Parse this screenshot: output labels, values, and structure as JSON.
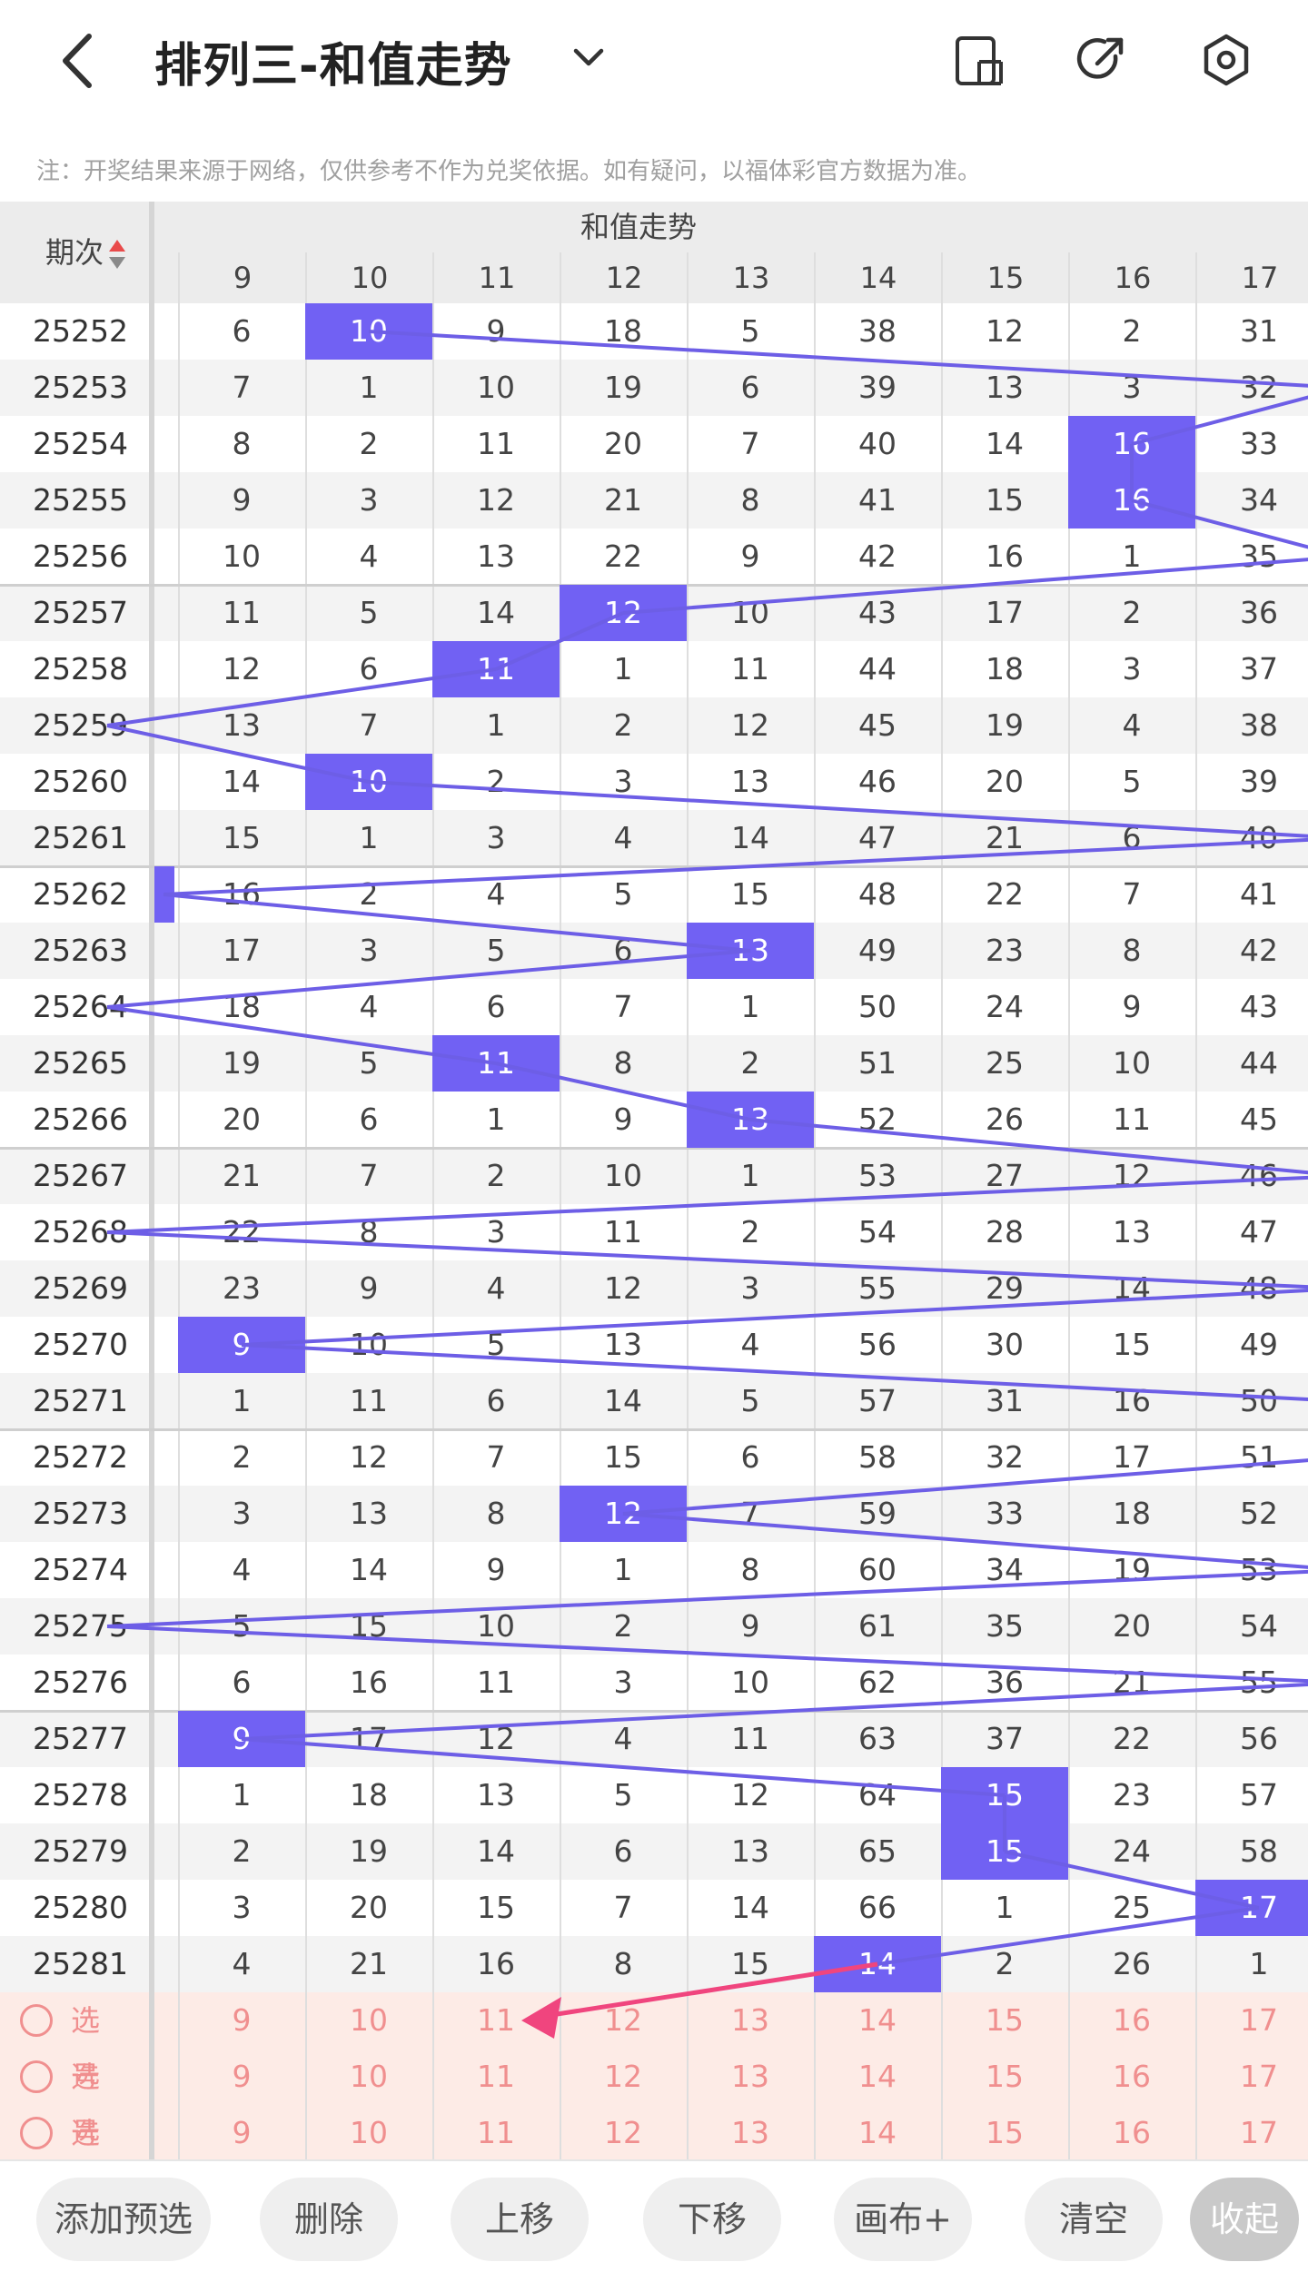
{
  "header": {
    "title": "排列三-和值走势",
    "back_icon": "chevron-left-icon",
    "dropdown_icon": "chevron-down-icon",
    "actions": [
      {
        "name": "layout-toggle-icon"
      },
      {
        "name": "share-arrow-icon"
      },
      {
        "name": "settings-icon"
      }
    ]
  },
  "notice": "注：开奖结果来源于网络，仅供参考不作为兑奖依据。如有疑问，以福体彩官方数据为准。",
  "table": {
    "issue_header": "期次",
    "group_header": "和值走势",
    "columns": [
      "9",
      "10",
      "11",
      "12",
      "13",
      "14",
      "15",
      "16",
      "17"
    ],
    "rows": [
      {
        "issue": "25252",
        "values": [
          "6",
          "10",
          "9",
          "18",
          "5",
          "38",
          "12",
          "2",
          "31"
        ],
        "hit": 1
      },
      {
        "issue": "25253",
        "values": [
          "7",
          "1",
          "10",
          "19",
          "6",
          "39",
          "13",
          "3",
          "32"
        ],
        "hit": null
      },
      {
        "issue": "25254",
        "values": [
          "8",
          "2",
          "11",
          "20",
          "7",
          "40",
          "14",
          "16",
          "33"
        ],
        "hit": 7
      },
      {
        "issue": "25255",
        "values": [
          "9",
          "3",
          "12",
          "21",
          "8",
          "41",
          "15",
          "16",
          "34"
        ],
        "hit": 7
      },
      {
        "issue": "25256",
        "values": [
          "10",
          "4",
          "13",
          "22",
          "9",
          "42",
          "16",
          "1",
          "35"
        ],
        "hit": null
      },
      {
        "issue": "25257",
        "values": [
          "11",
          "5",
          "14",
          "12",
          "10",
          "43",
          "17",
          "2",
          "36"
        ],
        "hit": 3
      },
      {
        "issue": "25258",
        "values": [
          "12",
          "6",
          "11",
          "1",
          "11",
          "44",
          "18",
          "3",
          "37"
        ],
        "hit": 2
      },
      {
        "issue": "25259",
        "values": [
          "13",
          "7",
          "1",
          "2",
          "12",
          "45",
          "19",
          "4",
          "38"
        ],
        "hit": null
      },
      {
        "issue": "25260",
        "values": [
          "14",
          "10",
          "2",
          "3",
          "13",
          "46",
          "20",
          "5",
          "39"
        ],
        "hit": 1
      },
      {
        "issue": "25261",
        "values": [
          "15",
          "1",
          "3",
          "4",
          "14",
          "47",
          "21",
          "6",
          "40"
        ],
        "hit": null
      },
      {
        "issue": "25262",
        "values": [
          "16",
          "2",
          "4",
          "5",
          "15",
          "48",
          "22",
          "7",
          "41"
        ],
        "hit": null
      },
      {
        "issue": "25263",
        "values": [
          "17",
          "3",
          "5",
          "6",
          "13",
          "49",
          "23",
          "8",
          "42"
        ],
        "hit": 4
      },
      {
        "issue": "25264",
        "values": [
          "18",
          "4",
          "6",
          "7",
          "1",
          "50",
          "24",
          "9",
          "43"
        ],
        "hit": null
      },
      {
        "issue": "25265",
        "values": [
          "19",
          "5",
          "11",
          "8",
          "2",
          "51",
          "25",
          "10",
          "44"
        ],
        "hit": 2
      },
      {
        "issue": "25266",
        "values": [
          "20",
          "6",
          "1",
          "9",
          "13",
          "52",
          "26",
          "11",
          "45"
        ],
        "hit": 4
      },
      {
        "issue": "25267",
        "values": [
          "21",
          "7",
          "2",
          "10",
          "1",
          "53",
          "27",
          "12",
          "46"
        ],
        "hit": null
      },
      {
        "issue": "25268",
        "values": [
          "22",
          "8",
          "3",
          "11",
          "2",
          "54",
          "28",
          "13",
          "47"
        ],
        "hit": null
      },
      {
        "issue": "25269",
        "values": [
          "23",
          "9",
          "4",
          "12",
          "3",
          "55",
          "29",
          "14",
          "48"
        ],
        "hit": null
      },
      {
        "issue": "25270",
        "values": [
          "9",
          "10",
          "5",
          "13",
          "4",
          "56",
          "30",
          "15",
          "49"
        ],
        "hit": 0
      },
      {
        "issue": "25271",
        "values": [
          "1",
          "11",
          "6",
          "14",
          "5",
          "57",
          "31",
          "16",
          "50"
        ],
        "hit": null
      },
      {
        "issue": "25272",
        "values": [
          "2",
          "12",
          "7",
          "15",
          "6",
          "58",
          "32",
          "17",
          "51"
        ],
        "hit": null
      },
      {
        "issue": "25273",
        "values": [
          "3",
          "13",
          "8",
          "12",
          "7",
          "59",
          "33",
          "18",
          "52"
        ],
        "hit": 3
      },
      {
        "issue": "25274",
        "values": [
          "4",
          "14",
          "9",
          "1",
          "8",
          "60",
          "34",
          "19",
          "53"
        ],
        "hit": null
      },
      {
        "issue": "25275",
        "values": [
          "5",
          "15",
          "10",
          "2",
          "9",
          "61",
          "35",
          "20",
          "54"
        ],
        "hit": null
      },
      {
        "issue": "25276",
        "values": [
          "6",
          "16",
          "11",
          "3",
          "10",
          "62",
          "36",
          "21",
          "55"
        ],
        "hit": null
      },
      {
        "issue": "25277",
        "values": [
          "9",
          "17",
          "12",
          "4",
          "11",
          "63",
          "37",
          "22",
          "56"
        ],
        "hit": 0
      },
      {
        "issue": "25278",
        "values": [
          "1",
          "18",
          "13",
          "5",
          "12",
          "64",
          "15",
          "23",
          "57"
        ],
        "hit": 6
      },
      {
        "issue": "25279",
        "values": [
          "2",
          "19",
          "14",
          "6",
          "13",
          "65",
          "15",
          "24",
          "58"
        ],
        "hit": 6
      },
      {
        "issue": "25280",
        "values": [
          "3",
          "20",
          "15",
          "7",
          "14",
          "66",
          "1",
          "25",
          "17"
        ],
        "hit": 8
      },
      {
        "issue": "25281",
        "values": [
          "4",
          "21",
          "16",
          "8",
          "15",
          "14",
          "2",
          "26",
          "1"
        ],
        "hit": 5
      }
    ],
    "pick_rows": [
      {
        "label": "选号",
        "values": [
          "9",
          "10",
          "11",
          "12",
          "13",
          "14",
          "15",
          "16",
          "17"
        ]
      },
      {
        "label": "选号",
        "values": [
          "9",
          "10",
          "11",
          "12",
          "13",
          "14",
          "15",
          "16",
          "17"
        ]
      },
      {
        "label": "选号",
        "values": [
          "9",
          "10",
          "11",
          "12",
          "13",
          "14",
          "15",
          "16",
          "17"
        ]
      }
    ],
    "sort_icon": "sort-updown-icon",
    "colors": {
      "hit": "#7161f3",
      "line": "#6d5ee6",
      "pick": "#f08f8f",
      "pick_bg": "#fdebe6",
      "arrow": "#f0457e"
    }
  },
  "bottom_bar": {
    "buttons": [
      "添加预选",
      "删除",
      "上移",
      "下移",
      "画布+",
      "清空",
      "收起"
    ]
  }
}
